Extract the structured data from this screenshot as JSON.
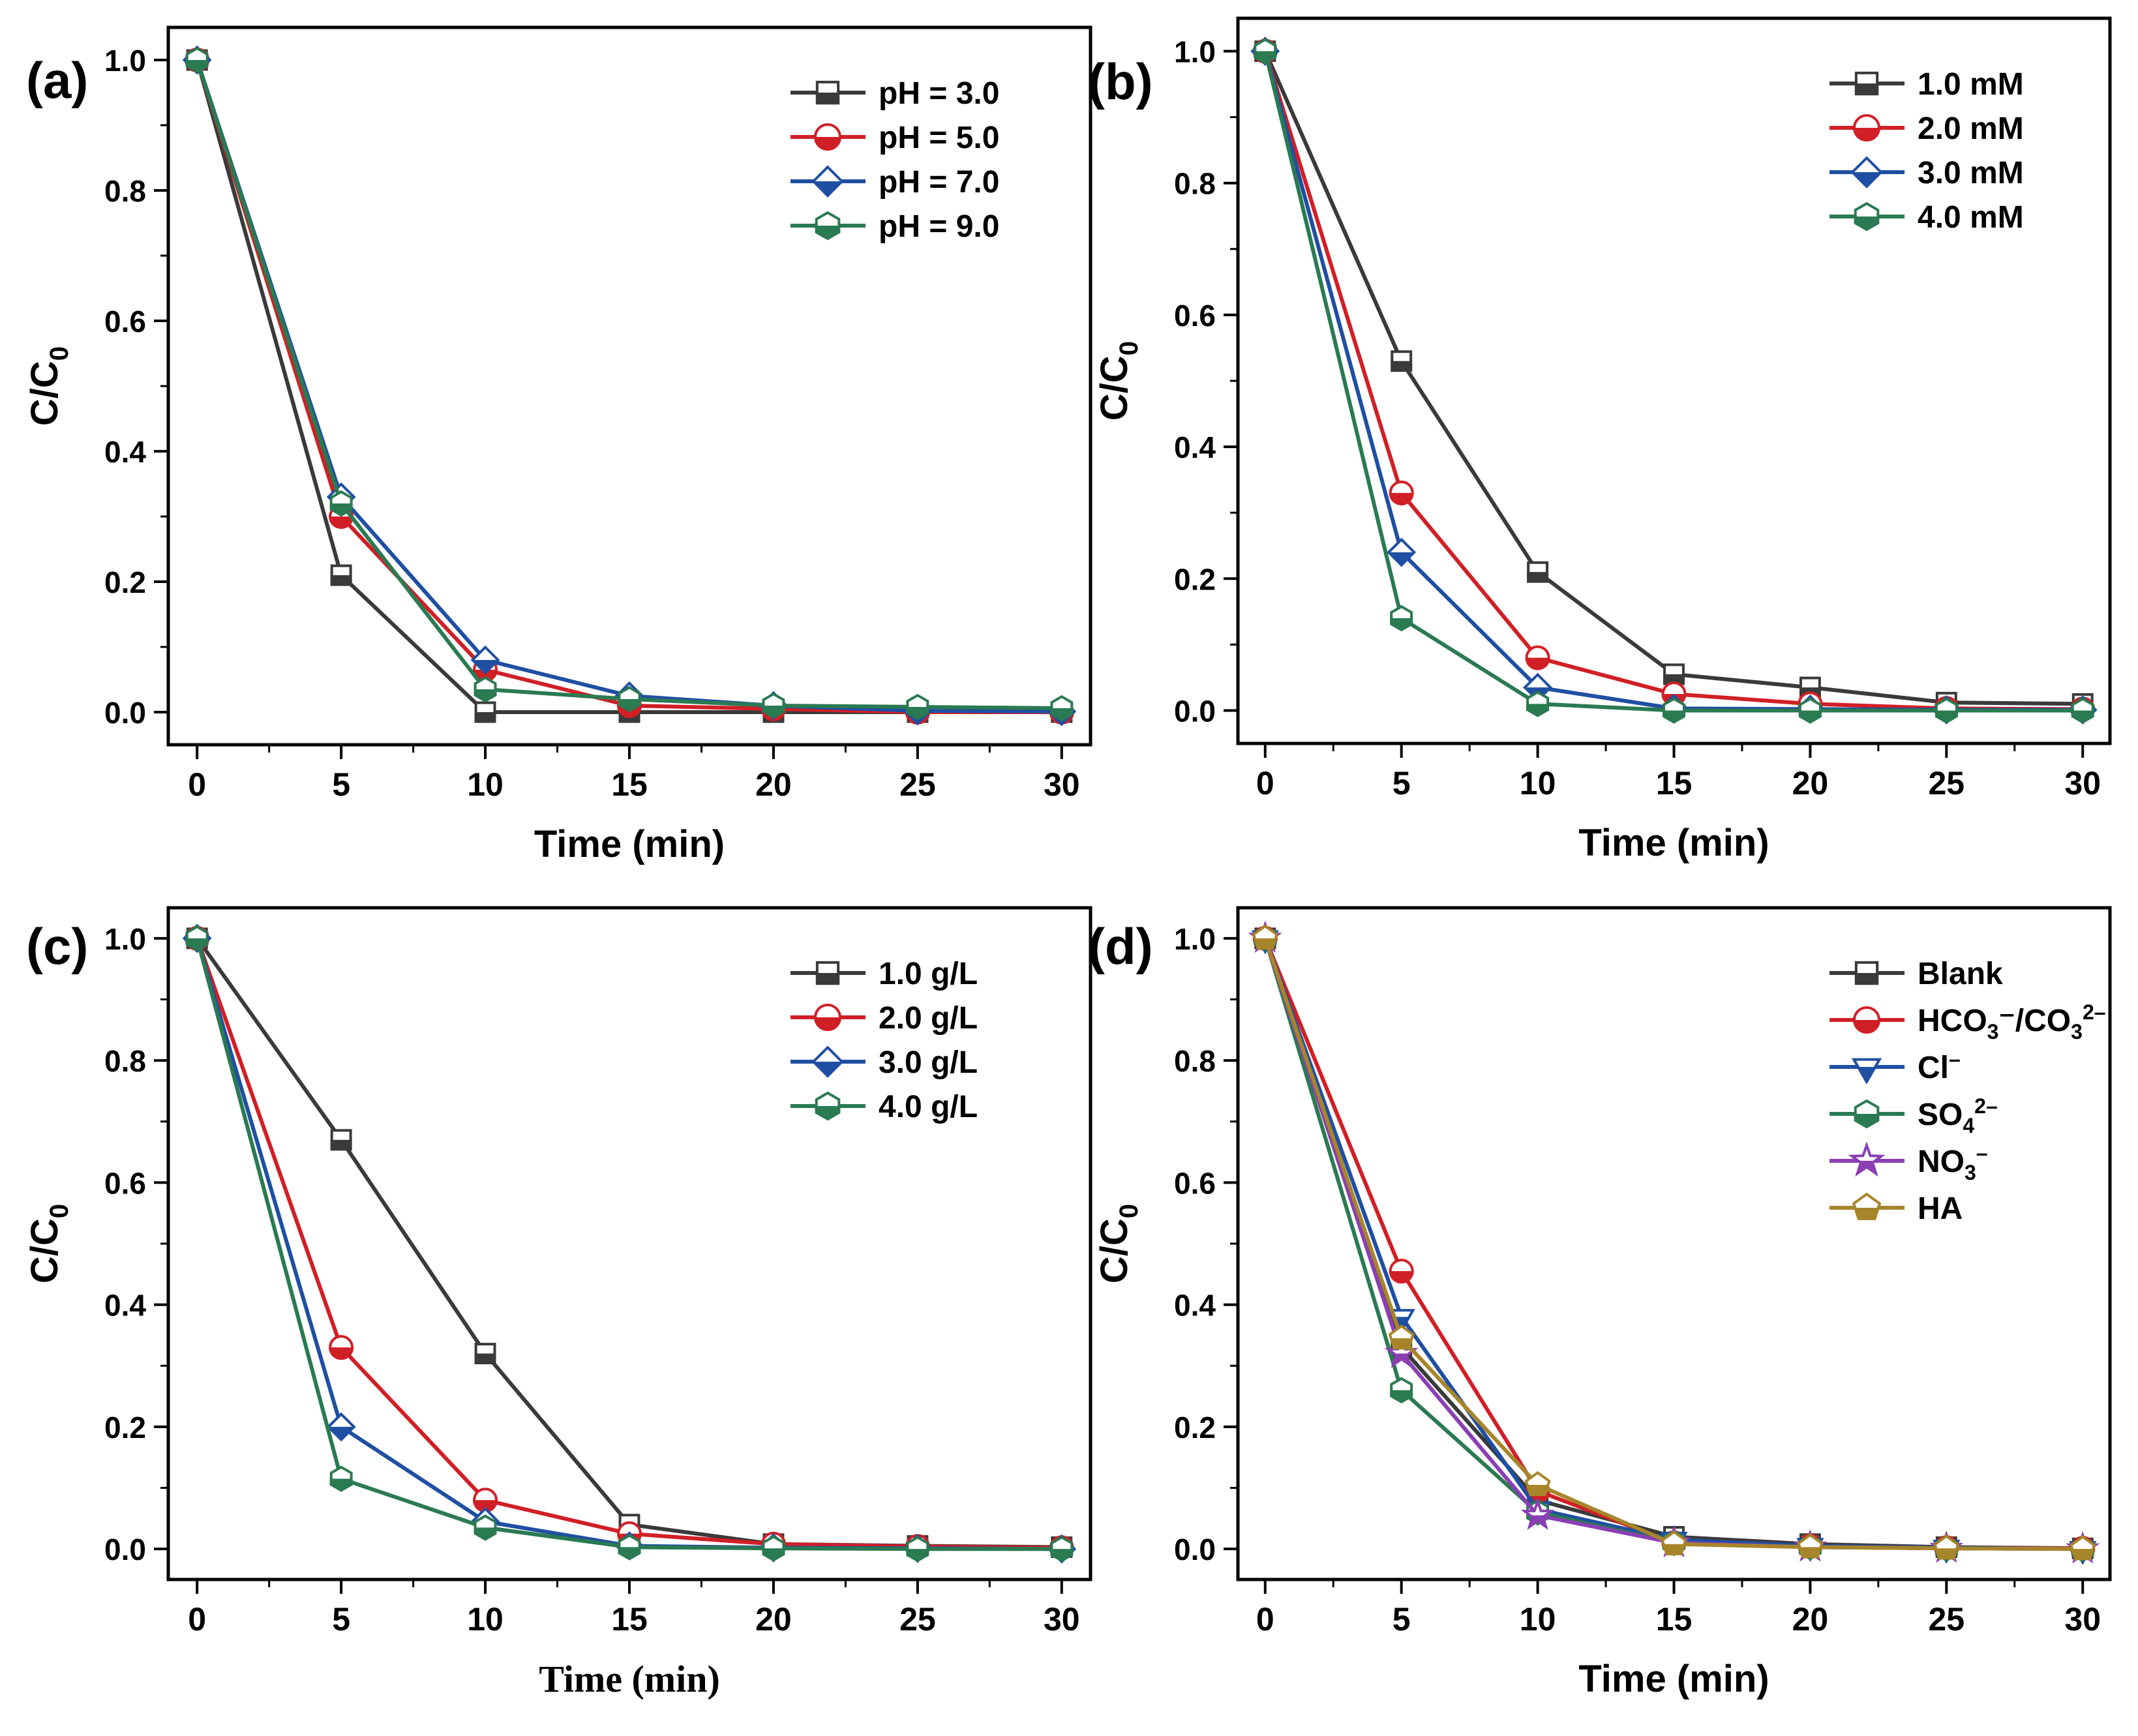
{
  "colors": {
    "black": "#3a3a3a",
    "red": "#d11f26",
    "blue": "#1f4fa2",
    "green": "#2a7a52",
    "purple": "#8a3fb3",
    "gold": "#a7852a"
  },
  "chart_data": [
    {
      "panel": "(a)",
      "type": "line",
      "xlabel": "Time (min)",
      "ylabel": "C/C0",
      "xlim": [
        -1,
        31
      ],
      "ylim": [
        -0.05,
        1.05
      ],
      "x": [
        0,
        5,
        10,
        15,
        20,
        25,
        30
      ],
      "xticks": [
        "0",
        "5",
        "10",
        "15",
        "20",
        "25",
        "30"
      ],
      "yticks": [
        "0.0",
        "0.2",
        "0.4",
        "0.6",
        "0.8",
        "1.0"
      ],
      "legend_position": "top-right",
      "series": [
        {
          "name": "pH = 3.0",
          "color": "black",
          "marker": "square",
          "values": [
            1.0,
            0.21,
            0.0,
            0.0,
            0.0,
            0.0,
            0.0
          ]
        },
        {
          "name": "pH = 5.0",
          "color": "red",
          "marker": "circle",
          "values": [
            1.0,
            0.3,
            0.065,
            0.01,
            0.005,
            0.0,
            0.0
          ]
        },
        {
          "name": "pH = 7.0",
          "color": "blue",
          "marker": "diamond",
          "values": [
            1.0,
            0.33,
            0.08,
            0.025,
            0.01,
            0.002,
            0.001
          ]
        },
        {
          "name": "pH = 9.0",
          "color": "green",
          "marker": "hexagon",
          "values": [
            1.0,
            0.32,
            0.035,
            0.02,
            0.01,
            0.008,
            0.006
          ]
        }
      ]
    },
    {
      "panel": "(b)",
      "type": "line",
      "xlabel": "Time (min)",
      "ylabel": "C/C0",
      "xlim": [
        -1,
        31
      ],
      "ylim": [
        -0.05,
        1.05
      ],
      "x": [
        0,
        5,
        10,
        15,
        20,
        25,
        30
      ],
      "xticks": [
        "0",
        "5",
        "10",
        "15",
        "20",
        "25",
        "30"
      ],
      "yticks": [
        "0.0",
        "0.2",
        "0.4",
        "0.6",
        "0.8",
        "1.0"
      ],
      "legend_position": "top-right",
      "series": [
        {
          "name": "1.0 mM",
          "color": "black",
          "marker": "square",
          "values": [
            1.0,
            0.53,
            0.21,
            0.055,
            0.035,
            0.012,
            0.01
          ]
        },
        {
          "name": "2.0 mM",
          "color": "red",
          "marker": "circle",
          "values": [
            1.0,
            0.33,
            0.08,
            0.025,
            0.01,
            0.003,
            0.002
          ]
        },
        {
          "name": "3.0 mM",
          "color": "blue",
          "marker": "diamond",
          "values": [
            1.0,
            0.24,
            0.035,
            0.003,
            0.002,
            0.001,
            0.001
          ]
        },
        {
          "name": "4.0 mM",
          "color": "green",
          "marker": "hexagon",
          "values": [
            1.0,
            0.14,
            0.01,
            0.0,
            0.0,
            0.0,
            0.0
          ]
        }
      ]
    },
    {
      "panel": "(c)",
      "type": "line",
      "xlabel": "Time (min)",
      "ylabel": "C/C0",
      "xlim": [
        -1,
        31
      ],
      "ylim": [
        -0.05,
        1.05
      ],
      "x": [
        0,
        5,
        10,
        15,
        20,
        25,
        30
      ],
      "xticks": [
        "0",
        "5",
        "10",
        "15",
        "20",
        "25",
        "30"
      ],
      "yticks": [
        "0.0",
        "0.2",
        "0.4",
        "0.6",
        "0.8",
        "1.0"
      ],
      "legend_position": "top-right",
      "series": [
        {
          "name": "1.0 g/L",
          "color": "black",
          "marker": "square",
          "values": [
            1.0,
            0.67,
            0.32,
            0.04,
            0.008,
            0.005,
            0.003
          ]
        },
        {
          "name": "2.0 g/L",
          "color": "red",
          "marker": "circle",
          "values": [
            1.0,
            0.33,
            0.08,
            0.025,
            0.008,
            0.004,
            0.002
          ]
        },
        {
          "name": "3.0 g/L",
          "color": "blue",
          "marker": "diamond",
          "values": [
            1.0,
            0.2,
            0.045,
            0.005,
            0.002,
            0.001,
            0.0
          ]
        },
        {
          "name": "4.0 g/L",
          "color": "green",
          "marker": "hexagon",
          "values": [
            1.0,
            0.115,
            0.035,
            0.003,
            0.001,
            0.0,
            0.0
          ]
        }
      ]
    },
    {
      "panel": "(d)",
      "type": "line",
      "xlabel": "Time (min)",
      "ylabel": "C/C0",
      "xlim": [
        -1,
        31
      ],
      "ylim": [
        -0.05,
        1.05
      ],
      "x": [
        0,
        5,
        10,
        15,
        20,
        25,
        30
      ],
      "xticks": [
        "0",
        "5",
        "10",
        "15",
        "20",
        "25",
        "30"
      ],
      "yticks": [
        "0.0",
        "0.2",
        "0.4",
        "0.6",
        "0.8",
        "1.0"
      ],
      "legend_position": "top-right",
      "series": [
        {
          "name": "Blank",
          "color": "black",
          "marker": "square",
          "values": [
            1.0,
            0.33,
            0.08,
            0.02,
            0.008,
            0.003,
            0.001
          ]
        },
        {
          "name": "HCO3⁻/CO3²⁻",
          "label_parts": [
            "HCO",
            "3",
            "⁻/CO",
            "3",
            "2–"
          ],
          "color": "red",
          "marker": "circle",
          "values": [
            1.0,
            0.455,
            0.095,
            0.01,
            0.005,
            0.002,
            0.001
          ]
        },
        {
          "name": "Cl⁻",
          "label_parts": [
            "Cl",
            "",
            "–"
          ],
          "color": "blue",
          "marker": "triangle-down",
          "values": [
            1.0,
            0.38,
            0.065,
            0.015,
            0.005,
            0.002,
            0.0
          ]
        },
        {
          "name": "SO4²⁻",
          "label_parts": [
            "SO",
            "4",
            "2–"
          ],
          "color": "green",
          "marker": "hexagon",
          "values": [
            1.0,
            0.26,
            0.06,
            0.01,
            0.003,
            0.001,
            0.0
          ]
        },
        {
          "name": "NO3⁻",
          "label_parts": [
            "NO",
            "3",
            "–"
          ],
          "color": "purple",
          "marker": "star",
          "values": [
            1.0,
            0.32,
            0.055,
            0.01,
            0.003,
            0.001,
            0.0
          ]
        },
        {
          "name": "HA",
          "color": "gold",
          "marker": "pentagon",
          "values": [
            1.0,
            0.345,
            0.105,
            0.008,
            0.003,
            0.001,
            0.0
          ]
        }
      ]
    }
  ]
}
